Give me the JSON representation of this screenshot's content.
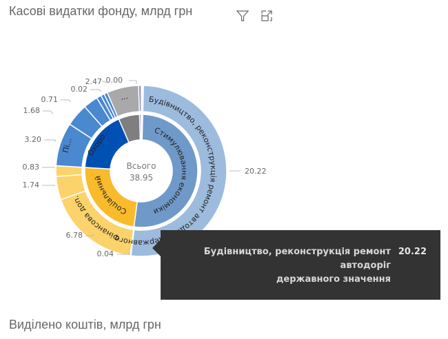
{
  "header": {
    "title": "Касові видатки фонду, млрд грн",
    "filter_icon": "filter-icon",
    "focus_icon": "focus-mode-icon"
  },
  "footer": {
    "next_title": "Виділено коштів, млрд грн"
  },
  "center": {
    "label": "Всього",
    "value": "38.95"
  },
  "tooltip": {
    "name_line1": "Будівництво, реконструкція ремонт",
    "name_line2": "автодоріг",
    "name_line3": "державного значення",
    "value": "20.22"
  },
  "colors": {
    "stimulus_inner": "#6f99c8",
    "stimulus_outer": "#9dbbdc",
    "social_inner": "#f9bb2b",
    "social_outer": "#fcd36b",
    "health_inner": "#0050b3",
    "health_outer": "#4a88d0",
    "other_inner": "#7f7f7f",
    "other_outer": "#a9a9a9",
    "misc": "#8e8ed0",
    "background": "#ffffff",
    "tooltip_bg": "#333333"
  },
  "chart_data": {
    "type": "sunburst",
    "title": "Касові видатки фонду, млрд грн",
    "total": 38.95,
    "total_label": "Всього",
    "inner_ring": [
      {
        "name": "Стимулювання економіки",
        "value": 20.26
      },
      {
        "name": "Соціальний з...",
        "value": 9.35
      },
      {
        "name": "Охоро...",
        "value": 6.87
      },
      {
        "name": "...",
        "value": 2.47
      },
      {
        "name": "",
        "value": 0.0
      }
    ],
    "outer_ring": [
      {
        "parent": "Стимулювання економіки",
        "name": "Будівництво, реконструкція ремонт автодоріг державного значення",
        "value": 20.22,
        "label": "20.22"
      },
      {
        "parent": "Стимулювання економіки",
        "name": "",
        "value": 0.04,
        "label": "0.04"
      },
      {
        "parent": "Соціальний з...",
        "name": "Фінансова доп...",
        "value": 6.78,
        "label": "6.78"
      },
      {
        "parent": "Соціальний з...",
        "name": "",
        "value": 1.74,
        "label": "1.74"
      },
      {
        "parent": "Соціальний з...",
        "name": "",
        "value": 0.83,
        "label": "0.83"
      },
      {
        "parent": "Охоро...",
        "name": "Пі...",
        "value": 3.2,
        "label": "3.20"
      },
      {
        "parent": "Охоро...",
        "name": "",
        "value": 1.68,
        "label": "1.68"
      },
      {
        "parent": "Охоро...",
        "name": "",
        "value": 0.71,
        "label": "0.71"
      },
      {
        "parent": "Охоро...",
        "name": "",
        "value": 0.02,
        "label": "0.02"
      },
      {
        "parent": "...",
        "name": "...",
        "value": 2.47,
        "label": "2.47"
      },
      {
        "parent": "",
        "name": "",
        "value": 0.0,
        "label": "0.00"
      }
    ],
    "value_labels": [
      "20.22",
      "0.04",
      "6.78",
      "1.74",
      "0.83",
      "3.20",
      "1.68",
      "0.71",
      "0.02",
      "2.47",
      "0.00"
    ],
    "tooltip_shown": {
      "name": "Будівництво, реконструкція ремонт автодоріг державного значення",
      "value": 20.22
    }
  }
}
